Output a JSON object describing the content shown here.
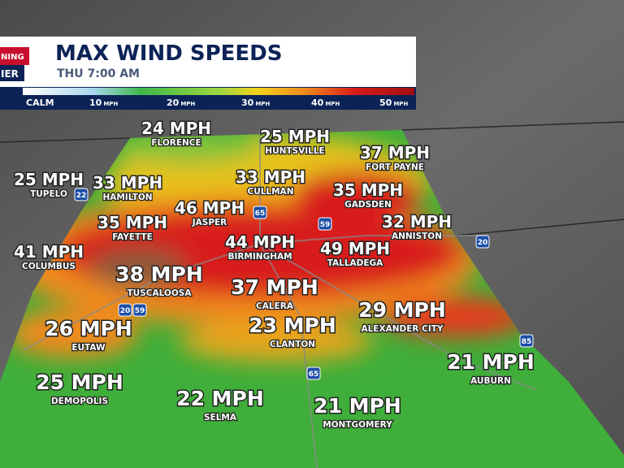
{
  "header": {
    "logo": [
      "NING",
      "IER"
    ],
    "title": "MAX WIND SPEEDS",
    "subtitle": "THU 7:00 AM"
  },
  "legend": {
    "calm": "CALM",
    "stops": [
      {
        "value": "10",
        "unit": "MPH"
      },
      {
        "value": "20",
        "unit": "MPH"
      },
      {
        "value": "30",
        "unit": "MPH"
      },
      {
        "value": "40",
        "unit": "MPH"
      },
      {
        "value": "50",
        "unit": "MPH"
      }
    ]
  },
  "cities": [
    {
      "speed": "24 MPH",
      "name": "FLORENCE"
    },
    {
      "speed": "25 MPH",
      "name": "HUNTSVILLE"
    },
    {
      "speed": "37 MPH",
      "name": "FORT PAYNE"
    },
    {
      "speed": "25 MPH",
      "name": "TUPELO"
    },
    {
      "speed": "33 MPH",
      "name": "HAMILTON"
    },
    {
      "speed": "33 MPH",
      "name": "CULLMAN"
    },
    {
      "speed": "35 MPH",
      "name": "GADSDEN"
    },
    {
      "speed": "46 MPH",
      "name": "JASPER"
    },
    {
      "speed": "35 MPH",
      "name": "FAYETTE"
    },
    {
      "speed": "32 MPH",
      "name": "ANNISTON"
    },
    {
      "speed": "41 MPH",
      "name": "COLUMBUS"
    },
    {
      "speed": "44 MPH",
      "name": "BIRMINGHAM"
    },
    {
      "speed": "49 MPH",
      "name": "TALLADEGA"
    },
    {
      "speed": "38 MPH",
      "name": "TUSCALOOSA"
    },
    {
      "speed": "37 MPH",
      "name": "CALERA"
    },
    {
      "speed": "29 MPH",
      "name": "ALEXANDER CITY"
    },
    {
      "speed": "26 MPH",
      "name": "EUTAW"
    },
    {
      "speed": "23 MPH",
      "name": "CLANTON"
    },
    {
      "speed": "21 MPH",
      "name": "AUBURN"
    },
    {
      "speed": "25 MPH",
      "name": "DEMOPOLIS"
    },
    {
      "speed": "22 MPH",
      "name": "SELMA"
    },
    {
      "speed": "21 MPH",
      "name": "MONTGOMERY"
    }
  ],
  "highways": [
    "22",
    "65",
    "59",
    "20",
    "20",
    "59",
    "65",
    "85"
  ]
}
